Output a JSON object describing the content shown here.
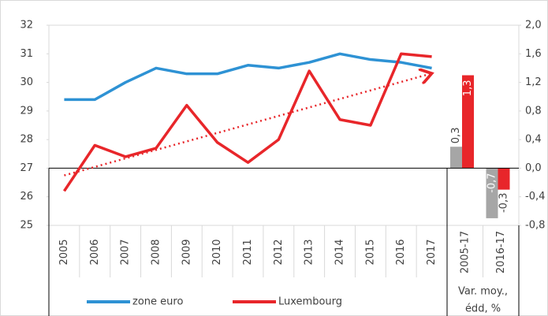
{
  "chart_data": {
    "type": "line",
    "categories": [
      "2005",
      "2006",
      "2007",
      "2008",
      "2009",
      "2010",
      "2011",
      "2012",
      "2013",
      "2014",
      "2015",
      "2016",
      "2017"
    ],
    "series": [
      {
        "name": "zone euro",
        "color": "#2e92d4",
        "values": [
          29.4,
          29.4,
          30.0,
          30.5,
          30.3,
          30.3,
          30.6,
          30.5,
          30.7,
          31.0,
          30.8,
          30.7,
          30.5
        ]
      },
      {
        "name": "Luxembourg",
        "color": "#e8262a",
        "values": [
          26.2,
          27.8,
          27.4,
          27.7,
          29.2,
          27.9,
          27.2,
          28.0,
          30.4,
          28.7,
          28.5,
          31.0,
          30.9
        ],
        "trendline": true
      }
    ],
    "ylim": [
      25,
      32
    ],
    "yticks": [
      25,
      26,
      27,
      28,
      29,
      30,
      31,
      32
    ],
    "bar_categories": [
      "2005-17",
      "2016-17"
    ],
    "bar_series": [
      {
        "color": "#a6a6a6",
        "axis": "y2",
        "values": [
          0.3,
          -0.7
        ],
        "value_labels": [
          "0,3",
          "-0,7"
        ]
      },
      {
        "color": "#e8262a",
        "axis": "y2",
        "values": [
          1.3,
          -0.3
        ],
        "value_labels": [
          "1,3",
          "-0,3"
        ]
      }
    ],
    "bar_group_label": [
      "Var. moy.,",
      "édd, %"
    ],
    "y2lim": [
      -0.8,
      2.0
    ],
    "y2ticks": [
      {
        "value": -0.8,
        "label": "-0,8"
      },
      {
        "value": -0.4,
        "label": "-0,4"
      },
      {
        "value": 0,
        "label": "0,0"
      },
      {
        "value": 0.4,
        "label": "0,4"
      },
      {
        "value": 0.8,
        "label": "0,8"
      },
      {
        "value": 1.2,
        "label": "1,2"
      },
      {
        "value": 1.6,
        "label": "1,6"
      },
      {
        "value": 2.0,
        "label": "2,0"
      }
    ]
  }
}
